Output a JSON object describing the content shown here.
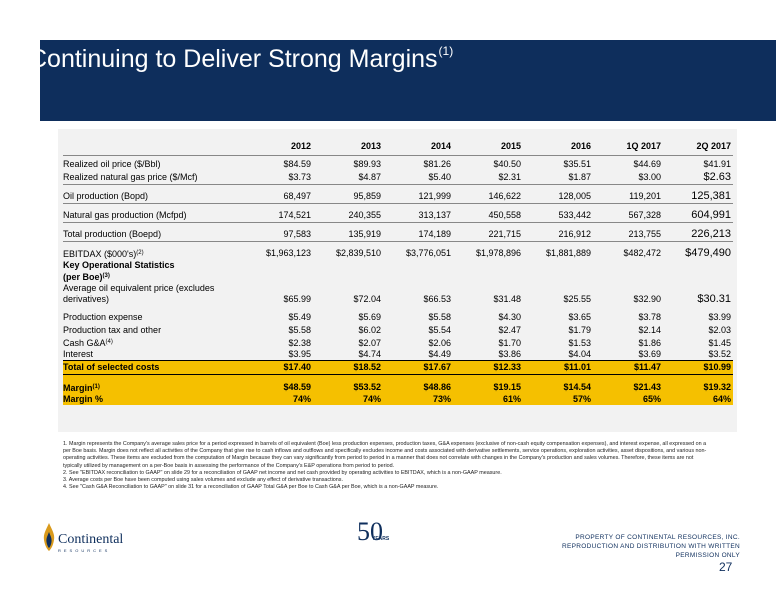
{
  "title": "Continuing to Deliver Strong Margins",
  "title_sup": "(1)",
  "years": [
    "2012",
    "2013",
    "2014",
    "2015",
    "2016",
    "1Q 2017",
    "2Q 2017"
  ],
  "rows": {
    "oil_price": {
      "label": "Realized oil price ($/Bbl)",
      "values": [
        "$84.59",
        "$89.93",
        "$81.26",
        "$40.50",
        "$35.51",
        "$44.69",
        "$41.91"
      ]
    },
    "gas_price": {
      "label": "Realized natural gas price ($/Mcf)",
      "values": [
        "$3.73",
        "$4.87",
        "$5.40",
        "$2.31",
        "$1.87",
        "$3.00",
        "$2.63"
      ]
    },
    "oil_prod": {
      "label": "Oil production (Bopd)",
      "values": [
        "68,497",
        "95,859",
        "121,999",
        "146,622",
        "128,005",
        "119,201",
        "125,381"
      ]
    },
    "gas_prod": {
      "label": "Natural gas production (Mcfpd)",
      "values": [
        "174,521",
        "240,355",
        "313,137",
        "450,558",
        "533,442",
        "567,328",
        "604,991"
      ]
    },
    "total_prod": {
      "label": "Total production (Boepd)",
      "values": [
        "97,583",
        "135,919",
        "174,189",
        "221,715",
        "216,912",
        "213,755",
        "226,213"
      ]
    },
    "ebitdax": {
      "label": "EBITDAX ($000's)",
      "sup": "(2)",
      "values": [
        "$1,963,123",
        "$2,839,510",
        "$3,776,051",
        "$1,978,896",
        "$1,881,889",
        "$482,472",
        "$479,490"
      ]
    },
    "kos_header": {
      "label_line1": "Key Operational Statistics",
      "label_line2": "(per Boe)",
      "sup": "(3)"
    },
    "avg_price": {
      "label_line1": "Average oil equivalent price (excludes",
      "label_line2": "derivatives)",
      "values": [
        "$65.99",
        "$72.04",
        "$66.53",
        "$31.48",
        "$25.55",
        "$32.90",
        "$30.31"
      ]
    },
    "prod_expense": {
      "label": "Production expense",
      "values": [
        "$5.49",
        "$5.69",
        "$5.58",
        "$4.30",
        "$3.65",
        "$3.78",
        "$3.99"
      ]
    },
    "prod_tax": {
      "label": "Production tax and other",
      "values": [
        "$5.58",
        "$6.02",
        "$5.54",
        "$2.47",
        "$1.79",
        "$2.14",
        "$2.03"
      ]
    },
    "cash_ga": {
      "label": "Cash G&A",
      "sup": "(4)",
      "values": [
        "$2.38",
        "$2.07",
        "$2.06",
        "$1.70",
        "$1.53",
        "$1.86",
        "$1.45"
      ]
    },
    "interest": {
      "label": "Interest",
      "values": [
        "$3.95",
        "$4.74",
        "$4.49",
        "$3.86",
        "$4.04",
        "$3.69",
        "$3.52"
      ]
    },
    "total_costs": {
      "label": "Total of selected costs",
      "values": [
        "$17.40",
        "$18.52",
        "$17.67",
        "$12.33",
        "$11.01",
        "$11.47",
        "$10.99"
      ]
    },
    "margin": {
      "label": "Margin",
      "sup": "(1)",
      "values": [
        "$48.59",
        "$53.52",
        "$48.86",
        "$19.15",
        "$14.54",
        "$21.43",
        "$19.32"
      ]
    },
    "margin_pct": {
      "label": "Margin %",
      "values": [
        "74%",
        "74%",
        "73%",
        "61%",
        "57%",
        "65%",
        "64%"
      ]
    }
  },
  "footnotes": [
    "1. Margin represents the Company's average sales price for a period expressed in barrels of oil equivalent (Boe) less production expenses, production taxes, G&A expenses (exclusive of non-cash equity compensation expenses), and interest expense, all expressed on a per Boe basis. Margin does not reflect all activities of the Company that give rise to cash inflows and outflows and specifically excludes income and costs associated with derivative settlements, service operations, exploration activities, asset dispositions, and various non-operating activities. These items are excluded from the computation of Margin because they can vary significantly from period to period in a manner that does not correlate with changes in the Company's production and sales volumes. Therefore, these items are not typically utilized by management on a per-Boe basis in assessing the performance of the Company's E&P operations from period to period.",
    "2. See \"EBITDAX reconciliation to GAAP\" on slide 29 for a reconciliation of GAAP net income and net cash provided by operating activities to EBITDAX, which is a non-GAAP measure.",
    "3. Average costs per Boe have been computed using sales volumes and exclude any effect of derivative transactions.",
    "4. See \"Cash G&A Reconciliation to GAAP\" on slide 31 for a reconciliation of GAAP Total G&A per Boe to Cash G&A per Boe, which is a non-GAAP measure."
  ],
  "logo": {
    "name": "Continental",
    "sub": "RESOURCES",
    "anniversary": "50",
    "anniversary_label": "YEARS"
  },
  "property_notice": "PROPERTY OF CONTINENTAL RESOURCES, INC. REPRODUCTION AND DISTRIBUTION WITH WRITTEN PERMISSION ONLY",
  "page_number": "27",
  "colors": {
    "header": "#0e2e5c",
    "highlight": "#f5c000",
    "table_bg": "#f2f2f2",
    "logo_gold": "#d99a1c"
  }
}
